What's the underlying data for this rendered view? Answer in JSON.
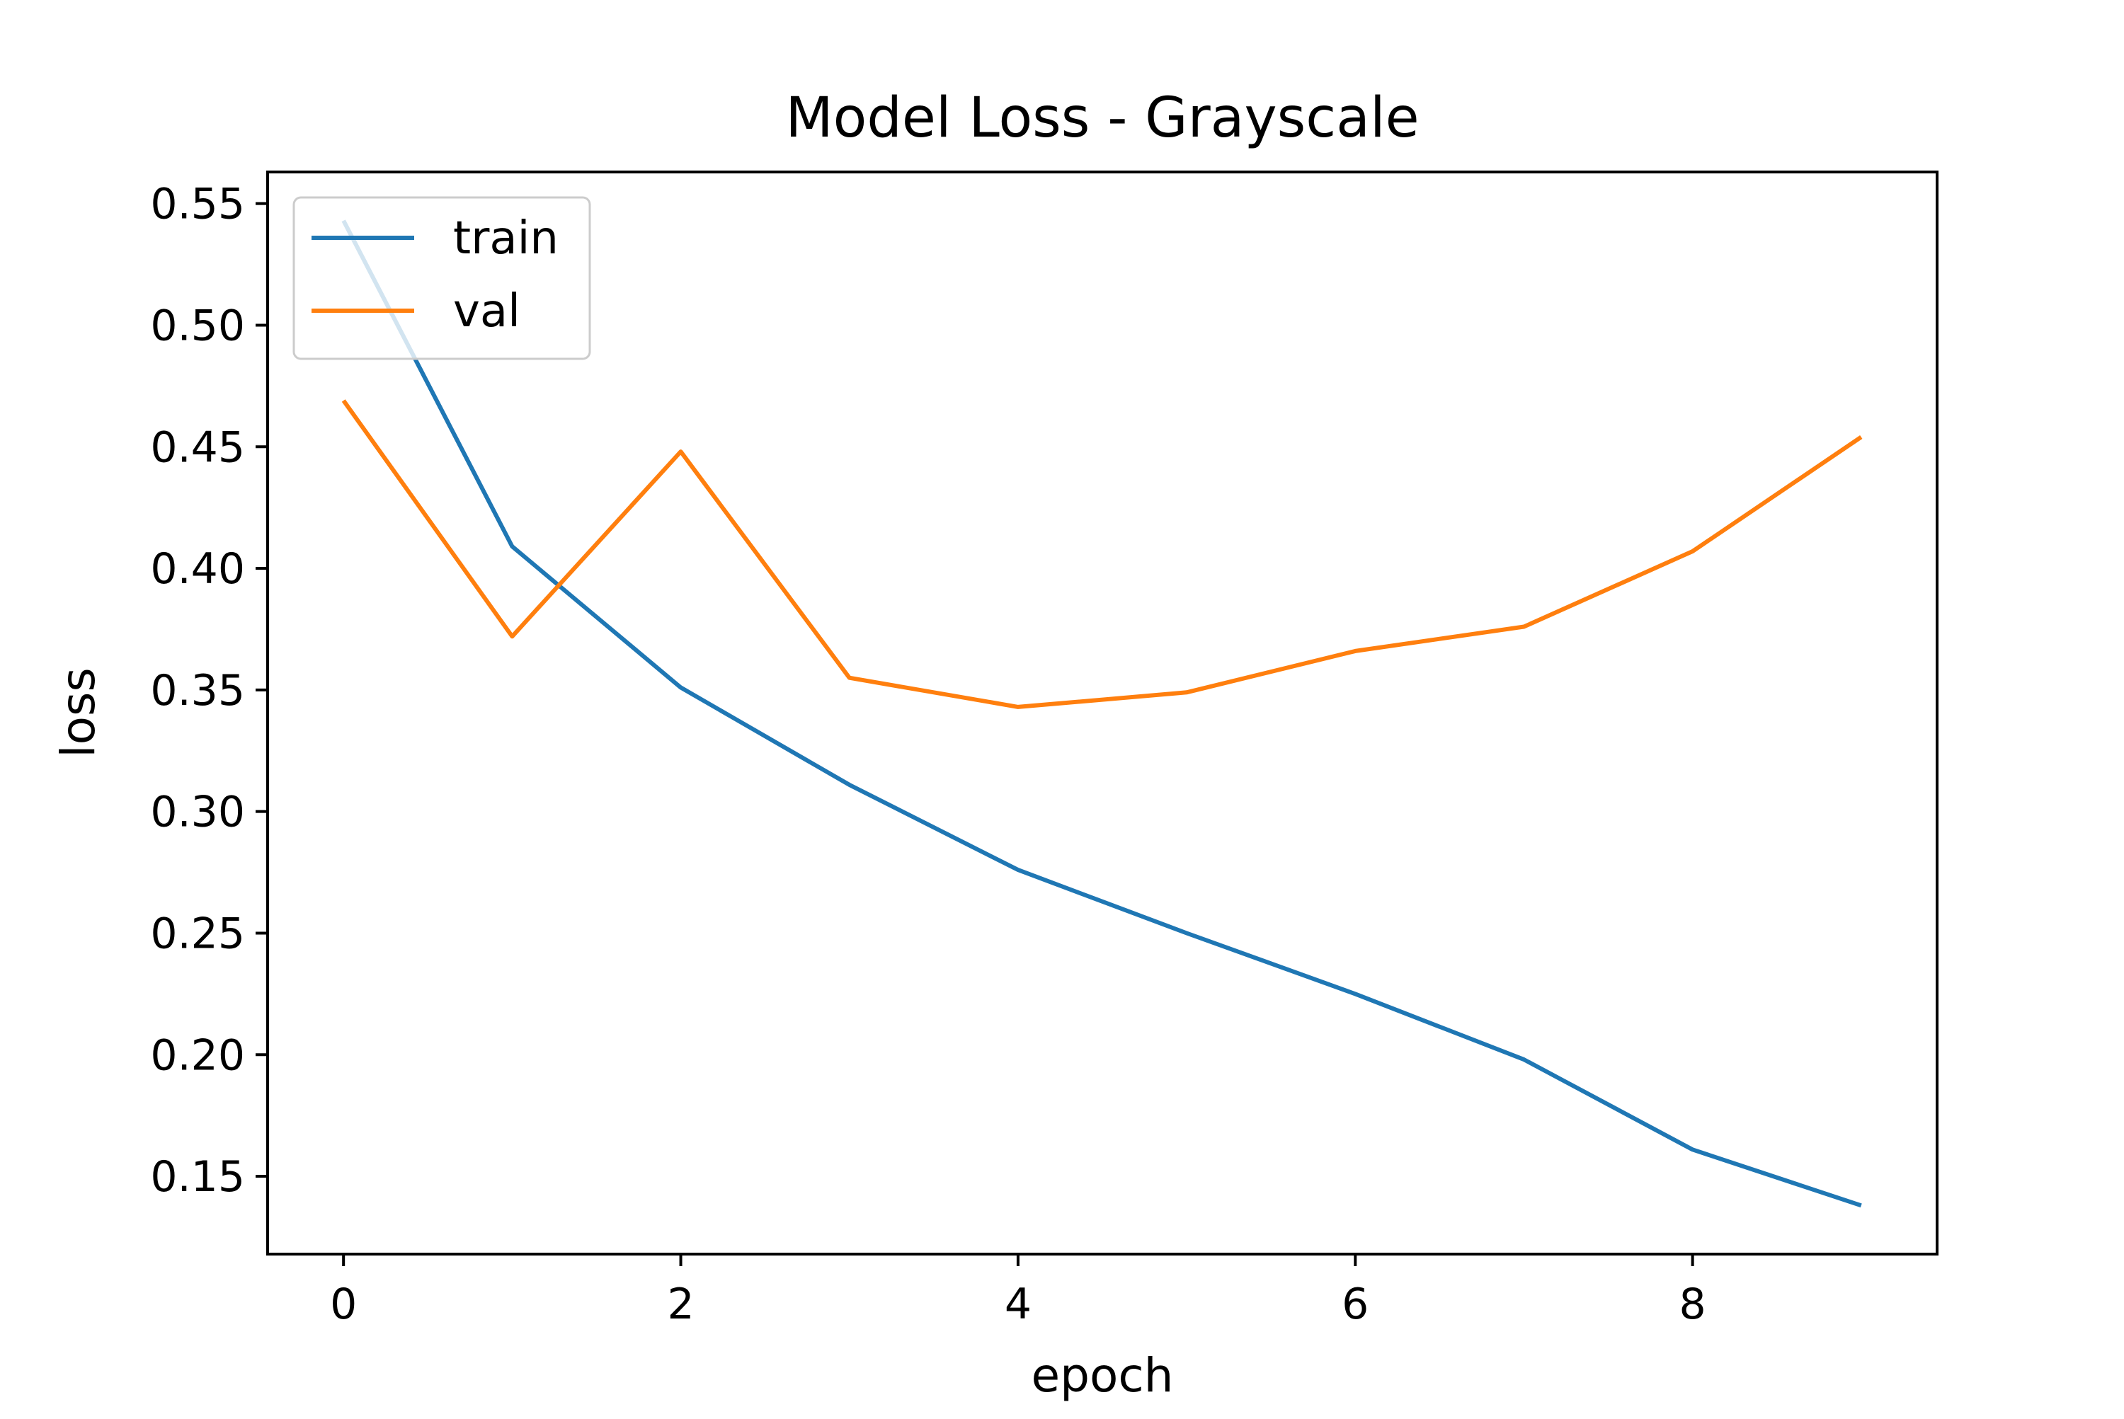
{
  "chart_data": {
    "type": "line",
    "title": "Model Loss - Grayscale",
    "xlabel": "epoch",
    "ylabel": "loss",
    "x": [
      0,
      1,
      2,
      3,
      4,
      5,
      6,
      7,
      8,
      9
    ],
    "series": [
      {
        "name": "train",
        "color": "#1f77b4",
        "values": [
          0.543,
          0.409,
          0.351,
          0.311,
          0.276,
          0.25,
          0.225,
          0.198,
          0.161,
          0.138
        ]
      },
      {
        "name": "val",
        "color": "#ff7f0e",
        "values": [
          0.469,
          0.372,
          0.448,
          0.355,
          0.343,
          0.349,
          0.366,
          0.376,
          0.407,
          0.454
        ]
      }
    ],
    "xlim": [
      -0.45,
      9.45
    ],
    "ylim": [
      0.118,
      0.563
    ],
    "xticks": [
      0,
      2,
      4,
      6,
      8
    ],
    "xtick_labels": [
      "0",
      "2",
      "4",
      "6",
      "8"
    ],
    "yticks": [
      0.15,
      0.2,
      0.25,
      0.3,
      0.35,
      0.4,
      0.45,
      0.5,
      0.55
    ],
    "ytick_labels": [
      "0.15",
      "0.20",
      "0.25",
      "0.30",
      "0.35",
      "0.40",
      "0.45",
      "0.50",
      "0.55"
    ],
    "grid": false,
    "legend_position": "upper-left"
  }
}
